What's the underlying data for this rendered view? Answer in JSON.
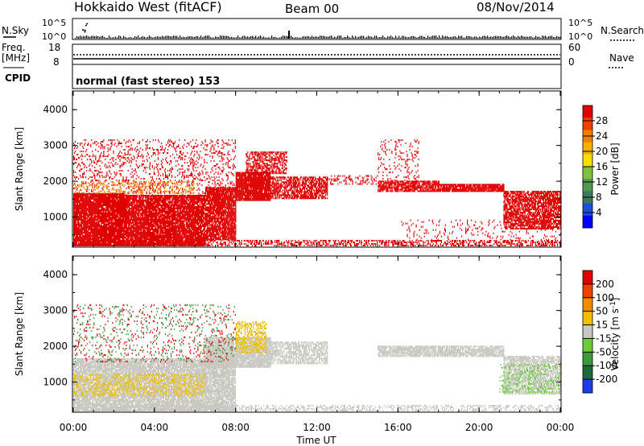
{
  "header": {
    "title": "Hokkaido West (fitACF)",
    "beam": "Beam 00",
    "date": "08/Nov/2014"
  },
  "top_panels": {
    "nsky_label": "N.Sky",
    "nsky_ticks": [
      "10^5",
      "10^0"
    ],
    "nsearch_label": "N.Search",
    "nsearch_ticks": [
      "10^5",
      "10^0"
    ],
    "freq_label": "Freq.",
    "freq_unit": "[MHz]",
    "freq_ticks": [
      "18",
      "8"
    ],
    "nave_label": "Nave",
    "nave_ticks": [
      "60",
      "0"
    ],
    "cpid_label": "CPID",
    "cpid_value": "normal (fast stereo) 153"
  },
  "chart_data": [
    {
      "type": "heatmap",
      "name": "power",
      "ylabel": "Slant Range [km]",
      "xlabel": "Time UT",
      "x_ticks": [
        "00:00",
        "04:00",
        "08:00",
        "12:00",
        "16:00",
        "20:00",
        "00:00"
      ],
      "xlim_hours": [
        0,
        24
      ],
      "ylim_km": [
        180,
        4500
      ],
      "y_ticks": [
        1000,
        2000,
        3000,
        4000
      ],
      "colorbar": {
        "label": "Power [dB]",
        "ticks": [
          "4",
          "8",
          "12",
          "16",
          "20",
          "24",
          "28"
        ],
        "range": [
          0,
          30
        ],
        "colors": [
          "#0000ff",
          "#1f4fd9",
          "#3a7a5a",
          "#4f9a4f",
          "#7fc040",
          "#f5e000",
          "#f5b000",
          "#f08000",
          "#ee4000",
          "#e00000"
        ]
      },
      "regions": [
        {
          "t0": 0.0,
          "t1": 2.5,
          "r0": 180,
          "r1": 1650,
          "color": "#e00000",
          "density": 0.93
        },
        {
          "t0": 2.5,
          "t1": 6.5,
          "r0": 180,
          "r1": 1620,
          "color": "#e00000",
          "density": 0.9
        },
        {
          "t0": 6.5,
          "t1": 8.0,
          "r0": 350,
          "r1": 1800,
          "color": "#e00000",
          "density": 0.85
        },
        {
          "t0": 8.0,
          "t1": 9.7,
          "r0": 1450,
          "r1": 2250,
          "color": "#e00000",
          "density": 0.95
        },
        {
          "t0": 9.7,
          "t1": 12.5,
          "r0": 1500,
          "r1": 2100,
          "color": "#e00000",
          "density": 0.7
        },
        {
          "t0": 12.5,
          "t1": 15.0,
          "r0": 1900,
          "r1": 2150,
          "color": "#e00000",
          "density": 0.25
        },
        {
          "t0": 15.0,
          "t1": 18.0,
          "r0": 1700,
          "r1": 2000,
          "color": "#e00000",
          "density": 0.8
        },
        {
          "t0": 18.0,
          "t1": 21.2,
          "r0": 1700,
          "r1": 1900,
          "color": "#e00000",
          "density": 0.9
        },
        {
          "t0": 21.2,
          "t1": 24.0,
          "r0": 650,
          "r1": 1700,
          "color": "#e00000",
          "density": 0.75
        },
        {
          "t0": 0.0,
          "t1": 8.0,
          "r0": 1550,
          "r1": 3150,
          "color": "#e00000",
          "density": 0.18
        },
        {
          "t0": 0.0,
          "t1": 6.0,
          "r0": 1650,
          "r1": 2000,
          "color": "#f08000",
          "density": 0.25
        },
        {
          "t0": 8.5,
          "t1": 10.5,
          "r0": 2200,
          "r1": 2800,
          "color": "#e00000",
          "density": 0.55
        },
        {
          "t0": 0.0,
          "t1": 24.0,
          "r0": 180,
          "r1": 320,
          "color": "#e00000",
          "density": 0.45
        },
        {
          "t0": 15.0,
          "t1": 17.0,
          "r0": 2000,
          "r1": 3150,
          "color": "#e00000",
          "density": 0.12
        },
        {
          "t0": 16.0,
          "t1": 24.0,
          "r0": 300,
          "r1": 900,
          "color": "#e00000",
          "density": 0.08
        }
      ]
    },
    {
      "type": "heatmap",
      "name": "velocity",
      "ylabel": "Slant Range [km]",
      "xlabel": "Time UT",
      "x_ticks": [
        "00:00",
        "04:00",
        "08:00",
        "12:00",
        "16:00",
        "20:00",
        "00:00"
      ],
      "xlim_hours": [
        0,
        24
      ],
      "ylim_km": [
        180,
        4500
      ],
      "y_ticks": [
        1000,
        2000,
        3000,
        4000
      ],
      "colorbar": {
        "label": "Velocity [m s^-1]",
        "ticks": [
          "200",
          "100",
          "50",
          "15",
          "-15",
          "-50",
          "-100",
          "-200"
        ],
        "range": [
          -250,
          250
        ],
        "colors": [
          "#1e3ce6",
          "#1e6a3c",
          "#3c9a3c",
          "#6ccc3c",
          "#c8c8c0",
          "#f0c000",
          "#f08c00",
          "#ee4000",
          "#e00000"
        ]
      },
      "regions": [
        {
          "t0": 0.0,
          "t1": 8.0,
          "r0": 180,
          "r1": 1650,
          "color": "#c8c8c0",
          "density": 0.85
        },
        {
          "t0": 0.0,
          "t1": 6.5,
          "r0": 600,
          "r1": 1200,
          "color": "#f0c000",
          "density": 0.3
        },
        {
          "t0": 6.5,
          "t1": 9.7,
          "r0": 1400,
          "r1": 2250,
          "color": "#c8c8c0",
          "density": 0.9
        },
        {
          "t0": 8.0,
          "t1": 9.5,
          "r0": 1800,
          "r1": 2700,
          "color": "#f0c000",
          "density": 0.45
        },
        {
          "t0": 9.7,
          "t1": 12.5,
          "r0": 1500,
          "r1": 2100,
          "color": "#c8c8c0",
          "density": 0.65
        },
        {
          "t0": 15.0,
          "t1": 21.2,
          "r0": 1700,
          "r1": 2000,
          "color": "#c8c8c0",
          "density": 0.8
        },
        {
          "t0": 21.2,
          "t1": 24.0,
          "r0": 650,
          "r1": 1700,
          "color": "#c8c8c0",
          "density": 0.7
        },
        {
          "t0": 21.0,
          "t1": 24.0,
          "r0": 700,
          "r1": 1500,
          "color": "#6ccc3c",
          "density": 0.2
        },
        {
          "t0": 0.0,
          "t1": 8.0,
          "r0": 1550,
          "r1": 3150,
          "color": "#e00000",
          "density": 0.06
        },
        {
          "t0": 0.0,
          "t1": 8.0,
          "r0": 1550,
          "r1": 3150,
          "color": "#3c9a3c",
          "density": 0.06
        },
        {
          "t0": 0.0,
          "t1": 24.0,
          "r0": 180,
          "r1": 320,
          "color": "#c8c8c0",
          "density": 0.35
        }
      ]
    }
  ]
}
